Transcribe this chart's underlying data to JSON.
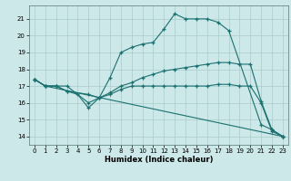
{
  "title": "",
  "xlabel": "Humidex (Indice chaleur)",
  "bg_color": "#cce8e8",
  "grid_color": "#aacccc",
  "line_color": "#1a7070",
  "xlim": [
    -0.5,
    23.5
  ],
  "ylim": [
    13.5,
    21.8
  ],
  "yticks": [
    14,
    15,
    16,
    17,
    18,
    19,
    20,
    21
  ],
  "xticks": [
    0,
    1,
    2,
    3,
    4,
    5,
    6,
    7,
    8,
    9,
    10,
    11,
    12,
    13,
    14,
    15,
    16,
    17,
    18,
    19,
    20,
    21,
    22,
    23
  ],
  "lines": [
    {
      "x": [
        0,
        1,
        2,
        3,
        4,
        5,
        6,
        7,
        8,
        9,
        10,
        11,
        12,
        13,
        14,
        15,
        16,
        17,
        18,
        21,
        22,
        23
      ],
      "y": [
        17.4,
        17.0,
        17.0,
        16.7,
        16.5,
        15.7,
        16.3,
        17.5,
        19.0,
        19.3,
        19.5,
        19.6,
        20.4,
        21.3,
        21.0,
        21.0,
        21.0,
        20.8,
        20.3,
        14.7,
        14.4,
        14.0
      ]
    },
    {
      "x": [
        0,
        1,
        2,
        3,
        5,
        6,
        7,
        8,
        9,
        10,
        11,
        12,
        13,
        14,
        15,
        16,
        17,
        18,
        19,
        20,
        21,
        22,
        23
      ],
      "y": [
        17.4,
        17.0,
        17.0,
        17.0,
        16.0,
        16.3,
        16.6,
        17.0,
        17.2,
        17.5,
        17.7,
        17.9,
        18.0,
        18.1,
        18.2,
        18.3,
        18.4,
        18.4,
        18.3,
        18.3,
        16.1,
        14.4,
        14.0
      ]
    },
    {
      "x": [
        0,
        1,
        2,
        3,
        5,
        6,
        7,
        8,
        9,
        10,
        11,
        12,
        13,
        14,
        15,
        16,
        17,
        18,
        19,
        20,
        21,
        22,
        23
      ],
      "y": [
        17.4,
        17.0,
        17.0,
        16.7,
        16.5,
        16.3,
        16.5,
        16.8,
        17.0,
        17.0,
        17.0,
        17.0,
        17.0,
        17.0,
        17.0,
        17.0,
        17.1,
        17.1,
        17.0,
        17.0,
        16.0,
        14.3,
        14.0
      ]
    },
    {
      "x": [
        0,
        1,
        23
      ],
      "y": [
        17.4,
        17.0,
        14.0
      ]
    }
  ]
}
